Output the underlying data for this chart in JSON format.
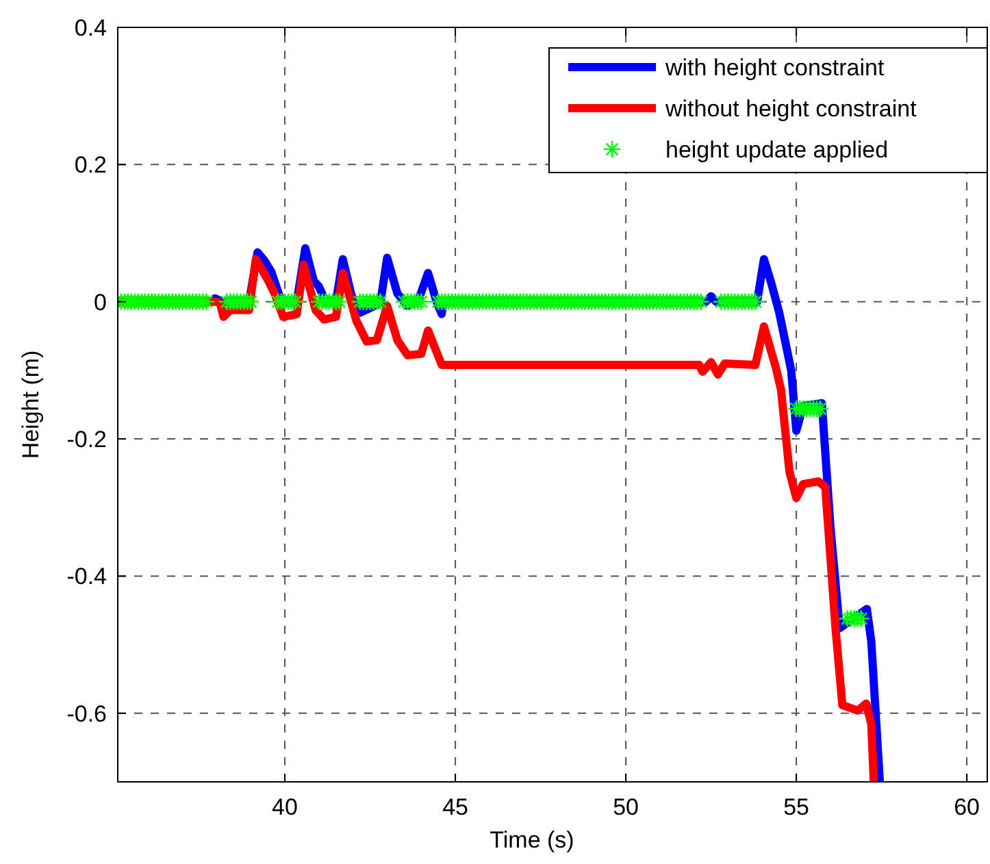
{
  "chart_data": {
    "type": "line",
    "xlabel": "Time (s)",
    "ylabel": "Height (m)",
    "xlim": [
      35.1,
      60.6
    ],
    "ylim": [
      -0.7,
      0.4
    ],
    "xticks": [
      40,
      45,
      50,
      55,
      60
    ],
    "yticks": [
      -0.6,
      -0.4,
      -0.2,
      0,
      0.2,
      0.4
    ],
    "grid": true,
    "legend": "top right",
    "series": [
      {
        "name": "with height constraint",
        "color": "#0000ff",
        "line_style": "solid",
        "marker": "none",
        "x": [
          35.1,
          37.8,
          37.95,
          38.15,
          38.95,
          39.2,
          39.4,
          39.6,
          39.9,
          40.35,
          40.6,
          40.85,
          41.0,
          41.2,
          41.5,
          41.7,
          41.95,
          42.2,
          42.8,
          43.0,
          43.3,
          43.6,
          43.9,
          44.2,
          44.45,
          44.6,
          44.65,
          52.35,
          52.5,
          52.65,
          53.85,
          54.05,
          54.25,
          54.5,
          54.85,
          55.0,
          55.2,
          55.75,
          56.0,
          56.27,
          56.55,
          57.07,
          57.2,
          57.45
        ],
        "values": [
          0,
          0,
          0.005,
          0,
          0,
          0.072,
          0.06,
          0.044,
          0,
          0,
          0.078,
          0.03,
          0.022,
          0,
          0,
          0.062,
          0.01,
          -0.016,
          -0.002,
          0.064,
          0.012,
          -0.006,
          0,
          0.042,
          0,
          -0.018,
          0,
          0,
          0.008,
          0,
          0,
          0.062,
          0.03,
          -0.016,
          -0.1,
          -0.188,
          -0.152,
          -0.148,
          -0.328,
          -0.476,
          -0.466,
          -0.448,
          -0.496,
          -0.7
        ]
      },
      {
        "name": "without height constraint",
        "color": "#ff0000",
        "line_style": "solid",
        "marker": "none",
        "x": [
          35.1,
          38.0,
          38.1,
          38.2,
          38.4,
          38.95,
          39.15,
          39.5,
          39.7,
          39.95,
          40.35,
          40.55,
          40.9,
          41.15,
          41.5,
          41.7,
          42.1,
          42.4,
          42.7,
          43.0,
          43.3,
          43.6,
          44.0,
          44.2,
          44.6,
          52.15,
          52.25,
          52.5,
          52.7,
          52.9,
          53.8,
          54.05,
          54.4,
          54.55,
          54.8,
          55.0,
          55.2,
          55.65,
          55.85,
          56.15,
          56.35,
          56.8,
          57.05,
          57.2,
          57.27
        ],
        "values": [
          0,
          0,
          -0.002,
          -0.022,
          -0.012,
          -0.012,
          0.062,
          0.032,
          0.012,
          -0.022,
          -0.018,
          0.054,
          -0.012,
          -0.026,
          -0.022,
          0.042,
          -0.028,
          -0.058,
          -0.056,
          -0.006,
          -0.056,
          -0.078,
          -0.076,
          -0.042,
          -0.092,
          -0.092,
          -0.102,
          -0.088,
          -0.106,
          -0.09,
          -0.092,
          -0.036,
          -0.096,
          -0.128,
          -0.248,
          -0.286,
          -0.266,
          -0.262,
          -0.27,
          -0.476,
          -0.588,
          -0.596,
          -0.586,
          -0.616,
          -0.7
        ]
      },
      {
        "name": "height update applied",
        "type": "scatter",
        "color": "#00ff00",
        "marker": "cross",
        "x": [
          35.2,
          35.3,
          35.4,
          35.5,
          35.6,
          35.7,
          35.8,
          35.9,
          36.0,
          36.1,
          36.2,
          36.3,
          36.4,
          36.5,
          36.6,
          36.7,
          36.8,
          36.9,
          37.0,
          37.1,
          37.2,
          37.3,
          37.4,
          37.5,
          37.6,
          37.7,
          38.3,
          38.4,
          38.5,
          38.6,
          38.7,
          38.8,
          38.9,
          39.0,
          39.8,
          39.9,
          40.0,
          40.1,
          40.2,
          40.3,
          41.0,
          41.1,
          41.2,
          41.3,
          41.4,
          41.5,
          41.6,
          42.2,
          42.3,
          42.4,
          42.5,
          42.6,
          42.7,
          42.8,
          43.5,
          43.6,
          43.7,
          43.8,
          43.9,
          44.0,
          44.5,
          44.6,
          44.7,
          44.8,
          44.9,
          45.0,
          45.1,
          45.2,
          45.3,
          45.4,
          45.5,
          45.6,
          45.7,
          45.8,
          45.9,
          46.0,
          46.1,
          46.2,
          46.3,
          46.4,
          46.5,
          46.6,
          46.7,
          46.8,
          46.9,
          47.0,
          47.1,
          47.2,
          47.3,
          47.4,
          47.5,
          47.6,
          47.7,
          47.8,
          47.9,
          48.0,
          48.1,
          48.2,
          48.3,
          48.4,
          48.5,
          48.6,
          48.7,
          48.8,
          48.9,
          49.0,
          49.1,
          49.2,
          49.3,
          49.4,
          49.5,
          49.6,
          49.7,
          49.8,
          49.9,
          50.0,
          50.1,
          50.2,
          50.3,
          50.4,
          50.5,
          50.6,
          50.7,
          50.8,
          50.9,
          51.0,
          51.1,
          51.2,
          51.3,
          51.4,
          51.5,
          51.6,
          51.7,
          51.8,
          51.9,
          52.0,
          52.1,
          52.2,
          52.8,
          52.9,
          53.0,
          53.1,
          53.2,
          53.3,
          53.4,
          53.5,
          53.6,
          53.7,
          53.8,
          55.0,
          55.1,
          55.2,
          55.3,
          55.4,
          55.5,
          55.6,
          55.7,
          56.5,
          56.6,
          56.7,
          56.8,
          56.9
        ],
        "values": [
          0,
          0,
          0,
          0,
          0,
          0,
          0,
          0,
          0,
          0,
          0,
          0,
          0,
          0,
          0,
          0,
          0,
          0,
          0,
          0,
          0,
          0,
          0,
          0,
          0,
          0,
          0,
          0,
          0,
          0,
          0,
          0,
          0,
          0,
          0,
          0,
          0,
          0,
          0,
          0,
          0,
          0,
          0,
          0,
          0,
          0,
          0,
          0,
          0,
          0,
          0,
          0,
          0,
          0,
          0,
          0,
          0,
          0,
          0,
          0,
          0,
          0,
          0,
          0,
          0,
          0,
          0,
          0,
          0,
          0,
          0,
          0,
          0,
          0,
          0,
          0,
          0,
          0,
          0,
          0,
          0,
          0,
          0,
          0,
          0,
          0,
          0,
          0,
          0,
          0,
          0,
          0,
          0,
          0,
          0,
          0,
          0,
          0,
          0,
          0,
          0,
          0,
          0,
          0,
          0,
          0,
          0,
          0,
          0,
          0,
          0,
          0,
          0,
          0,
          0,
          0,
          0,
          0,
          0,
          0,
          0,
          0,
          0,
          0,
          0,
          0,
          0,
          0,
          0,
          0,
          0,
          0,
          0,
          0,
          0,
          0,
          0,
          0,
          0,
          0,
          0,
          0,
          0,
          0,
          0,
          0,
          0,
          0,
          0,
          -0.156,
          -0.156,
          -0.156,
          -0.156,
          -0.156,
          -0.156,
          -0.156,
          -0.156,
          -0.462,
          -0.462,
          -0.462,
          -0.462,
          -0.462
        ]
      }
    ]
  }
}
